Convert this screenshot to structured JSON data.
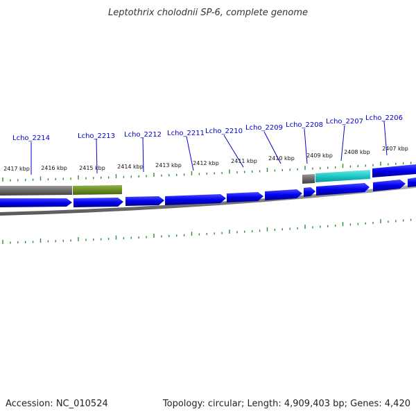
{
  "title": "Leptothrix cholodnii SP-6, complete genome",
  "footer": {
    "accession": "Accession: NC_010524",
    "topology": "Topology: circular; Length: 4,909,403 bp; Genes: 4,420"
  },
  "colors": {
    "cds_forward": "#0000ee",
    "backbone": "#7f7f7f",
    "gene_gray": "#6a6a6a",
    "gene_olive": "#6b8e23",
    "gene_cyan": "#1ec8c8",
    "ticks": "#2e8b2e",
    "label": "#0000cc"
  },
  "kbp_labels": [
    "2417 kbp",
    "2416 kbp",
    "2415 kbp",
    "2414 kbp",
    "2413 kbp",
    "2412 kbp",
    "2411 kbp",
    "2410 kbp",
    "2409 kbp",
    "2408 kbp",
    "2407 kbp"
  ],
  "gene_labels": [
    "Lcho_2214",
    "Lcho_2213",
    "Lcho_2212",
    "Lcho_2211",
    "Lcho_2210",
    "Lcho_2209",
    "Lcho_2208",
    "Lcho_2207",
    "Lcho_2206"
  ]
}
